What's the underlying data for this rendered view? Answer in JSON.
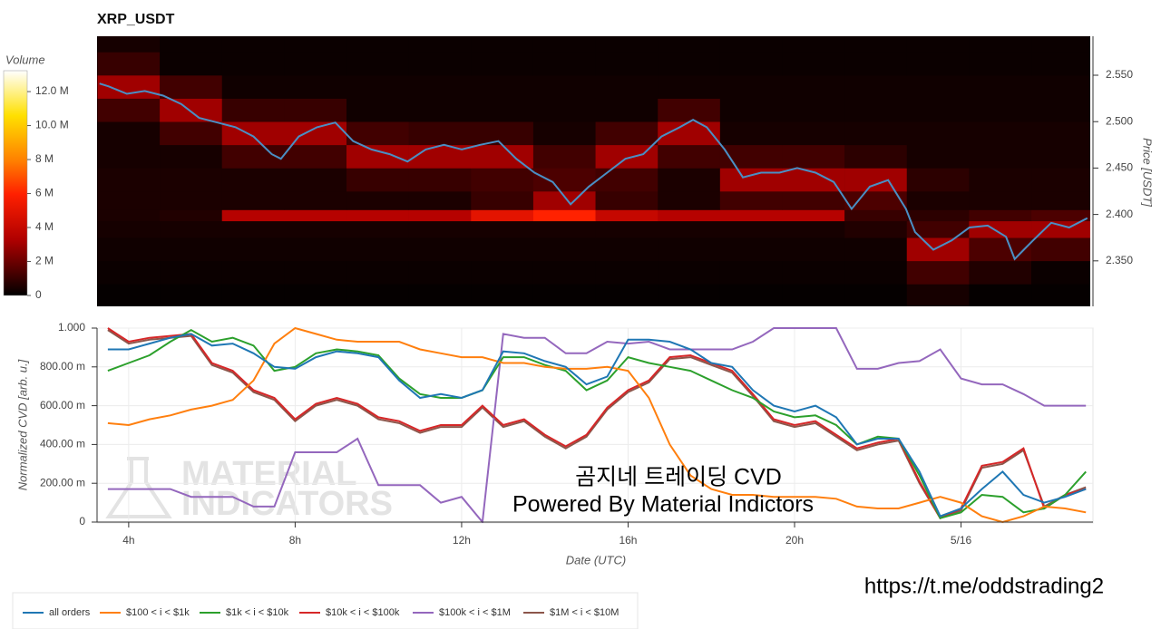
{
  "chart_data": [
    {
      "type": "heatmap",
      "title": "XRP_USDT",
      "ylabel": "Price [USDT]",
      "xlim": [
        3.24,
        27.17
      ],
      "ylim": [
        2.301,
        2.592
      ],
      "yticks": [
        {
          "value": 2.35,
          "label": "2.350"
        },
        {
          "value": 2.4,
          "label": "2.400"
        },
        {
          "value": 2.45,
          "label": "2.450"
        },
        {
          "value": 2.5,
          "label": "2.500"
        },
        {
          "value": 2.55,
          "label": "2.550"
        }
      ],
      "x_edges": [
        3.25,
        4.75,
        6.25,
        7.75,
        9.25,
        10.75,
        12.25,
        13.75,
        15.25,
        16.75,
        18.25,
        19.75,
        21.25,
        22.75,
        24.25,
        25.75,
        27.25
      ],
      "y_edges": [
        2.3,
        2.325,
        2.35,
        2.375,
        2.393,
        2.405,
        2.425,
        2.45,
        2.475,
        2.5,
        2.525,
        2.55,
        2.575,
        2.6
      ],
      "z": [
        [
          100000,
          100000,
          100000,
          100000,
          100000,
          100000,
          100000,
          100000,
          100000,
          100000,
          100000,
          100000,
          100000,
          400000,
          100000,
          100000
        ],
        [
          200000,
          200000,
          200000,
          200000,
          200000,
          200000,
          200000,
          200000,
          200000,
          200000,
          200000,
          200000,
          200000,
          1200000,
          600000,
          200000
        ],
        [
          300000,
          300000,
          300000,
          300000,
          300000,
          300000,
          300000,
          300000,
          300000,
          300000,
          300000,
          300000,
          300000,
          3000000,
          1400000,
          1200000
        ],
        [
          400000,
          400000,
          400000,
          400000,
          400000,
          400000,
          400000,
          400000,
          400000,
          400000,
          400000,
          400000,
          600000,
          1200000,
          3000000,
          3000000
        ],
        [
          500000,
          600000,
          3500000,
          3500000,
          3500000,
          3500000,
          5000000,
          6000000,
          4000000,
          3500000,
          3500000,
          3500000,
          1000000,
          800000,
          1200000,
          1400000
        ],
        [
          500000,
          500000,
          500000,
          500000,
          500000,
          500000,
          1000000,
          3000000,
          1000000,
          500000,
          1200000,
          1200000,
          1400000,
          500000,
          500000,
          500000
        ],
        [
          500000,
          500000,
          500000,
          500000,
          1000000,
          1000000,
          1200000,
          1400000,
          1200000,
          500000,
          3000000,
          3000000,
          3000000,
          800000,
          500000,
          500000
        ],
        [
          400000,
          400000,
          1200000,
          1200000,
          3000000,
          3000000,
          3000000,
          1200000,
          3000000,
          1200000,
          1200000,
          1200000,
          800000,
          400000,
          400000,
          400000
        ],
        [
          400000,
          1200000,
          3000000,
          3000000,
          1200000,
          1000000,
          1000000,
          400000,
          1200000,
          3000000,
          400000,
          400000,
          400000,
          400000,
          400000,
          400000
        ],
        [
          1200000,
          3000000,
          1000000,
          1000000,
          300000,
          300000,
          300000,
          300000,
          300000,
          1200000,
          300000,
          300000,
          300000,
          300000,
          300000,
          300000
        ],
        [
          3000000,
          1200000,
          300000,
          300000,
          300000,
          300000,
          300000,
          300000,
          300000,
          300000,
          300000,
          300000,
          300000,
          300000,
          300000,
          300000
        ],
        [
          1000000,
          200000,
          200000,
          200000,
          200000,
          200000,
          200000,
          200000,
          200000,
          200000,
          200000,
          200000,
          200000,
          200000,
          200000,
          200000
        ],
        [
          400000,
          200000,
          200000,
          200000,
          200000,
          200000,
          200000,
          200000,
          200000,
          200000,
          200000,
          200000,
          200000,
          200000,
          200000,
          200000
        ]
      ],
      "colorbar": {
        "label": "Volume",
        "lim": [
          0,
          13230000
        ],
        "ticks": [
          0,
          {
            "value": 2000000,
            "label": "2 M"
          },
          {
            "value": 4000000,
            "label": "4 M"
          },
          {
            "value": 6000000,
            "label": "6 M"
          },
          {
            "value": 8000000,
            "label": "8 M"
          },
          {
            "value": 10000000,
            "label": "10.0 M"
          },
          {
            "value": 12000000,
            "label": "12.0 M"
          }
        ]
      },
      "price": {
        "color": "#4a8fc4",
        "x": [
          3.3,
          3.52,
          3.96,
          4.39,
          4.83,
          5.27,
          5.7,
          6.14,
          6.58,
          7.01,
          7.45,
          7.67,
          8.1,
          8.54,
          8.98,
          9.41,
          9.85,
          10.29,
          10.72,
          11.16,
          11.6,
          12.03,
          12.47,
          12.91,
          13.34,
          13.78,
          14.22,
          14.65,
          15.09,
          15.53,
          15.97,
          16.4,
          16.84,
          17.28,
          17.6,
          17.93,
          18.36,
          18.8,
          19.24,
          19.68,
          20.11,
          20.55,
          20.99,
          21.42,
          21.86,
          22.3,
          22.73,
          22.95,
          23.39,
          23.83,
          24.26,
          24.7,
          25.14,
          25.35,
          25.57,
          25.79,
          26.23,
          26.66,
          27.1
        ],
        "values": [
          2.541,
          2.538,
          2.53,
          2.533,
          2.528,
          2.519,
          2.504,
          2.499,
          2.494,
          2.484,
          2.465,
          2.46,
          2.484,
          2.494,
          2.499,
          2.479,
          2.47,
          2.465,
          2.457,
          2.47,
          2.475,
          2.47,
          2.475,
          2.479,
          2.46,
          2.445,
          2.435,
          2.411,
          2.43,
          2.445,
          2.46,
          2.465,
          2.484,
          2.494,
          2.502,
          2.494,
          2.47,
          2.44,
          2.445,
          2.445,
          2.45,
          2.445,
          2.435,
          2.406,
          2.43,
          2.437,
          2.406,
          2.381,
          2.362,
          2.372,
          2.386,
          2.388,
          2.376,
          2.352,
          2.362,
          2.372,
          2.391,
          2.386,
          2.396
        ]
      }
    },
    {
      "type": "line",
      "xlabel": "Date (UTC)",
      "ylabel": "Normalized CVD [arb. u.]",
      "xlim": [
        3.24,
        27.17
      ],
      "ylim": [
        0,
        1
      ],
      "xticks": [
        {
          "value": 4,
          "label": "4h"
        },
        {
          "value": 8,
          "label": "8h"
        },
        {
          "value": 12,
          "label": "12h"
        },
        {
          "value": 16,
          "label": "16h"
        },
        {
          "value": 20,
          "label": "20h"
        },
        {
          "value": 24,
          "label": "5/16"
        }
      ],
      "yticks": [
        0,
        {
          "value": 0.2,
          "label": "200.00 m"
        },
        {
          "value": 0.4,
          "label": "400.00 m"
        },
        {
          "value": 0.6,
          "label": "600.00 m"
        },
        {
          "value": 0.8,
          "label": "800.00 m"
        },
        {
          "value": 1,
          "label": "1.000"
        }
      ],
      "grid": true,
      "x": [
        3.5,
        4,
        4.5,
        5,
        5.5,
        6,
        6.5,
        7,
        7.5,
        8,
        8.5,
        9,
        9.5,
        10,
        10.5,
        11,
        11.5,
        12,
        12.5,
        13,
        13.5,
        14,
        14.5,
        15,
        15.5,
        16,
        16.5,
        17,
        17.5,
        18,
        18.5,
        19,
        19.5,
        20,
        20.5,
        21,
        21.5,
        22,
        22.5,
        23,
        23.5,
        24,
        24.5,
        25,
        25.5,
        26,
        26.5,
        27
      ],
      "series": [
        {
          "name": "$1M < i < $10M",
          "color": "#8c564b",
          "values": [
            0.99,
            0.92,
            0.94,
            0.95,
            0.96,
            0.81,
            0.77,
            0.67,
            0.63,
            0.52,
            0.6,
            0.63,
            0.6,
            0.53,
            0.51,
            0.46,
            0.49,
            0.49,
            0.59,
            0.49,
            0.52,
            0.44,
            0.38,
            0.44,
            0.58,
            0.67,
            0.72,
            0.84,
            0.85,
            0.81,
            0.77,
            0.65,
            0.52,
            0.49,
            0.51,
            0.44,
            0.37,
            0.4,
            0.42,
            0.2,
            0.02,
            0.06,
            0.28,
            0.3,
            0.37,
            0.08,
            0.14,
            0.18
          ]
        },
        {
          "name": "$100k < i < $1M",
          "color": "#9467bd",
          "values": [
            0.17,
            0.17,
            0.17,
            0.17,
            0.13,
            0.13,
            0.13,
            0.08,
            0.08,
            0.36,
            0.36,
            0.36,
            0.43,
            0.19,
            0.19,
            0.19,
            0.1,
            0.13,
            0,
            0.97,
            0.95,
            0.95,
            0.87,
            0.87,
            0.93,
            0.92,
            0.93,
            0.89,
            0.89,
            0.89,
            0.89,
            0.93,
            1,
            1,
            1,
            1,
            0.79,
            0.79,
            0.82,
            0.83,
            0.89,
            0.74,
            0.71,
            0.71,
            0.66,
            0.6,
            0.6,
            0.6
          ]
        },
        {
          "name": "$10k < i < $100k",
          "color": "#d62728",
          "values": [
            1,
            0.93,
            0.95,
            0.96,
            0.97,
            0.82,
            0.78,
            0.68,
            0.64,
            0.53,
            0.61,
            0.64,
            0.61,
            0.54,
            0.52,
            0.47,
            0.5,
            0.5,
            0.6,
            0.5,
            0.53,
            0.45,
            0.39,
            0.45,
            0.59,
            0.68,
            0.73,
            0.85,
            0.86,
            0.82,
            0.78,
            0.66,
            0.53,
            0.5,
            0.52,
            0.45,
            0.38,
            0.41,
            0.43,
            0.21,
            0.02,
            0.07,
            0.29,
            0.31,
            0.38,
            0.07,
            0.14,
            0.17
          ]
        },
        {
          "name": "$1k < i < $10k",
          "color": "#2ca02c",
          "values": [
            0.78,
            0.82,
            0.86,
            0.93,
            0.99,
            0.93,
            0.95,
            0.91,
            0.78,
            0.8,
            0.87,
            0.89,
            0.88,
            0.86,
            0.74,
            0.66,
            0.64,
            0.64,
            0.68,
            0.85,
            0.85,
            0.81,
            0.78,
            0.68,
            0.73,
            0.85,
            0.82,
            0.8,
            0.78,
            0.73,
            0.68,
            0.64,
            0.57,
            0.54,
            0.55,
            0.5,
            0.4,
            0.44,
            0.43,
            0.24,
            0.02,
            0.05,
            0.14,
            0.13,
            0.05,
            0.07,
            0.14,
            0.26
          ]
        },
        {
          "name": "$100 < i < $1k",
          "color": "#ff7f0e",
          "values": [
            0.51,
            0.5,
            0.53,
            0.55,
            0.58,
            0.6,
            0.63,
            0.73,
            0.92,
            1,
            0.97,
            0.94,
            0.93,
            0.93,
            0.93,
            0.89,
            0.87,
            0.85,
            0.85,
            0.82,
            0.82,
            0.8,
            0.79,
            0.79,
            0.8,
            0.78,
            0.64,
            0.4,
            0.24,
            0.17,
            0.14,
            0.14,
            0.13,
            0.13,
            0.13,
            0.12,
            0.08,
            0.07,
            0.07,
            0.1,
            0.13,
            0.1,
            0.03,
            0,
            0.03,
            0.08,
            0.07,
            0.05
          ]
        },
        {
          "name": "all orders",
          "color": "#1f77b4",
          "values": [
            0.89,
            0.89,
            0.92,
            0.95,
            0.97,
            0.91,
            0.92,
            0.87,
            0.8,
            0.79,
            0.85,
            0.88,
            0.87,
            0.85,
            0.73,
            0.64,
            0.66,
            0.64,
            0.68,
            0.88,
            0.87,
            0.83,
            0.8,
            0.71,
            0.75,
            0.94,
            0.94,
            0.93,
            0.89,
            0.82,
            0.8,
            0.68,
            0.6,
            0.57,
            0.6,
            0.54,
            0.4,
            0.43,
            0.43,
            0.26,
            0.03,
            0.07,
            0.17,
            0.26,
            0.14,
            0.1,
            0.13,
            0.17
          ]
        }
      ],
      "legend_order": [
        5,
        4,
        3,
        2,
        1,
        0
      ],
      "watermark": [
        "MATERIAL",
        "INDICATORS"
      ],
      "annotations": [
        "곰지네 트레이딩 CVD",
        "Powered By Material Indictors"
      ],
      "link": "https://t.me/oddstrading2"
    }
  ]
}
